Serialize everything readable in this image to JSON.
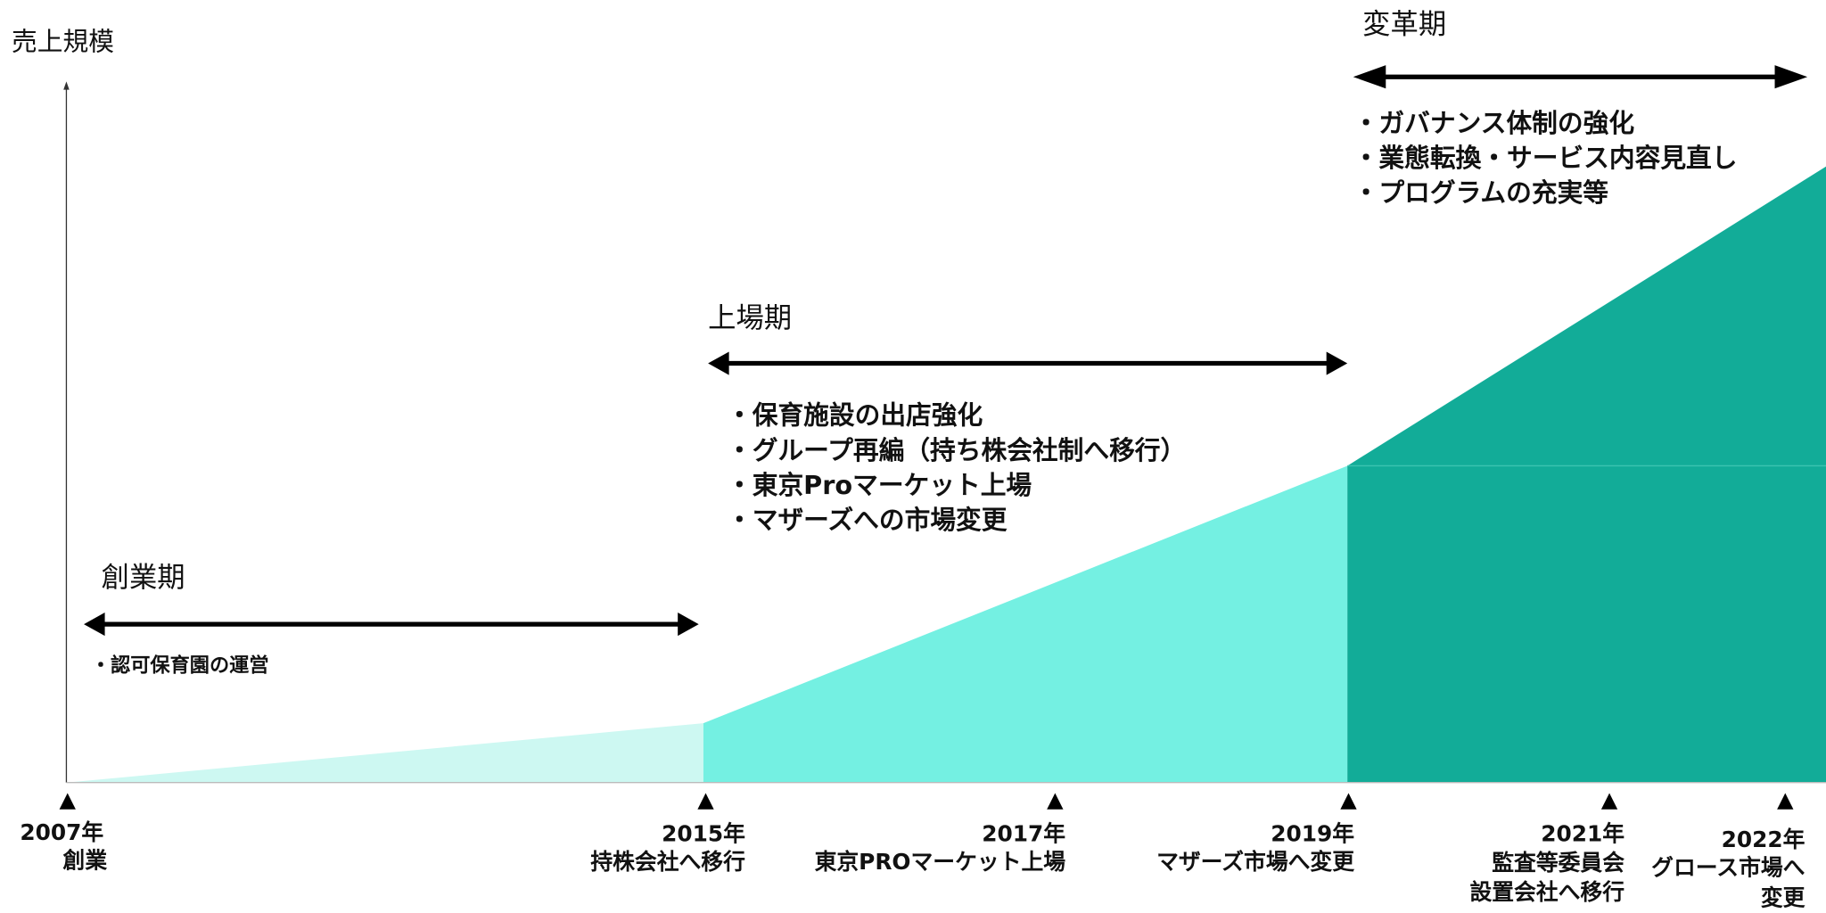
{
  "y_axis_label": "売上規模",
  "phases": [
    {
      "label": "創業期",
      "bullets": [
        "・認可保育園の運営"
      ]
    },
    {
      "label": "上場期",
      "bullets": [
        "・保育施設の出店強化",
        "・グループ再編（持ち株会社制へ移行）",
        "・東京Proマーケット上場",
        "・マザーズへの市場変更"
      ]
    },
    {
      "label": "変革期",
      "bullets": [
        "・ガバナンス体制の強化",
        "・業態転換・サービス内容見直し",
        "・プログラムの充実等"
      ]
    }
  ],
  "milestones": [
    {
      "year": "2007年",
      "events": [
        "創業"
      ]
    },
    {
      "year": "2015年",
      "events": [
        "持株会社へ移行"
      ]
    },
    {
      "year": "2017年",
      "events": [
        "東京PROマーケット上場"
      ]
    },
    {
      "year": "2019年",
      "events": [
        "マザーズ市場へ変更"
      ]
    },
    {
      "year": "2021年",
      "events": [
        "監査等委員会",
        "設置会社へ移行"
      ]
    },
    {
      "year": "2022年",
      "events": [
        "グロース市場へ",
        "変更"
      ]
    }
  ]
}
